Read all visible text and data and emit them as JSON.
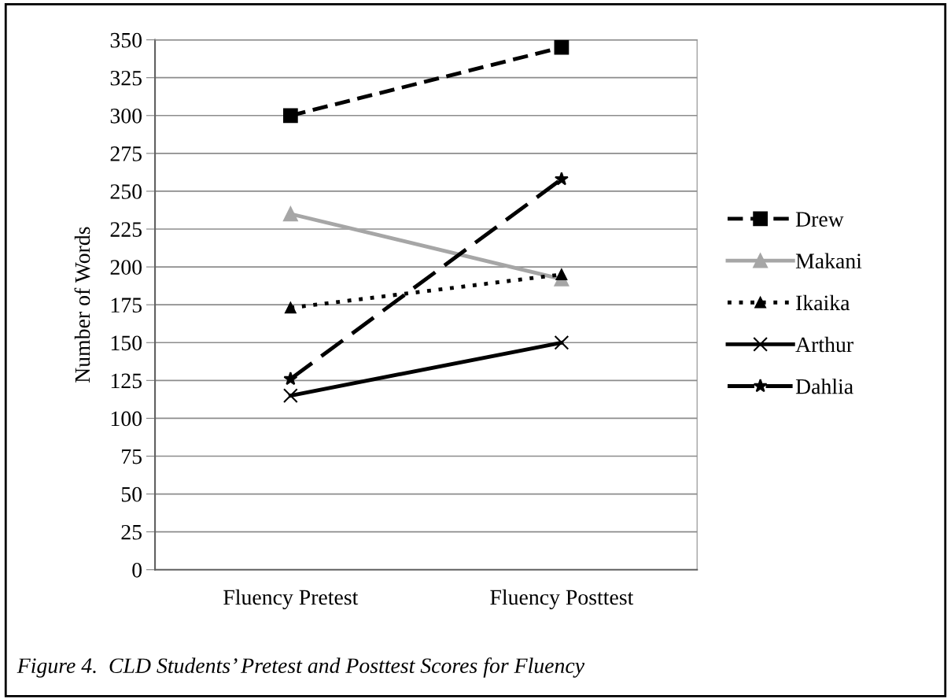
{
  "chart_data": {
    "type": "line",
    "ylabel": "Number of Words",
    "categories": [
      "Fluency Pretest",
      "Fluency Posttest"
    ],
    "series": [
      {
        "name": "Drew",
        "color": "#000000",
        "values": [
          300,
          345
        ],
        "marker": "square",
        "line_style": "dashed"
      },
      {
        "name": "Makani",
        "color": "#a6a6a6",
        "values": [
          235,
          192
        ],
        "marker": "triangle",
        "line_style": "solid"
      },
      {
        "name": "Ikaika",
        "color": "#000000",
        "values": [
          173,
          195
        ],
        "marker": "triangle",
        "line_style": "dotted"
      },
      {
        "name": "Arthur",
        "color": "#000000",
        "values": [
          115,
          150
        ],
        "marker": "cross",
        "line_style": "solid"
      },
      {
        "name": "Dahlia",
        "color": "#000000",
        "values": [
          126,
          258
        ],
        "marker": "star",
        "line_style": "dashed"
      }
    ],
    "ylim": [
      0,
      350
    ],
    "yticks": [
      0,
      25,
      50,
      75,
      100,
      125,
      150,
      175,
      200,
      225,
      250,
      275,
      300,
      325,
      350
    ],
    "grid": "y",
    "legend": "right",
    "annotations": [
      "Figure 4.  CLD Students’ Pretest and Posttest Scores for Fluency"
    ]
  }
}
